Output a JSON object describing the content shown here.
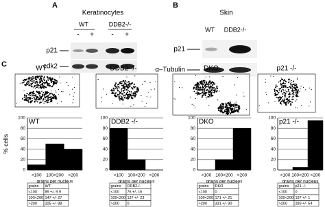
{
  "panels": {
    "a": {
      "label": "A",
      "title": "Keratinocytes",
      "groups": [
        "WT",
        "DDB2-/-"
      ],
      "treatments": [
        "-",
        "+",
        "-",
        "+"
      ],
      "rows": [
        "p21",
        "cdk2"
      ]
    },
    "b": {
      "label": "B",
      "title": "Skin",
      "groups": [
        "WT",
        "DDB2-/-"
      ],
      "rows": [
        "p21",
        "α–Tubulin"
      ]
    },
    "c": {
      "label": "C",
      "images": [
        "WT",
        "DDB2 -/-",
        "DKO",
        "p21 -/-"
      ]
    }
  },
  "chart_data": [
    {
      "type": "bar",
      "title": "WT",
      "ylabel": "% cells",
      "xlabel": "grains per nucleus",
      "categories": [
        "<100",
        "100<200",
        ">200"
      ],
      "values": [
        10,
        50,
        40
      ],
      "color": "#000000",
      "ylim": [
        0,
        100
      ],
      "yticks": [
        0,
        20,
        40,
        60,
        80,
        100
      ],
      "grid": true
    },
    {
      "type": "bar",
      "title": "DDB2 -/-",
      "xlabel": "grains per nucleus",
      "categories": [
        "<100",
        "100<200",
        ">200"
      ],
      "values": [
        80,
        20,
        0
      ],
      "color": "#000000",
      "ylim": [
        0,
        100
      ],
      "yticks": [
        0,
        20,
        40,
        60,
        80,
        100
      ],
      "grid": true
    },
    {
      "type": "bar",
      "title": "DKO",
      "xlabel": "grains per nucleus",
      "categories": [
        "<100",
        "100<200",
        ">200"
      ],
      "values": [
        0,
        20,
        80
      ],
      "color": "#000000",
      "ylim": [
        0,
        100
      ],
      "yticks": [
        0,
        20,
        40,
        60,
        80,
        100
      ],
      "grid": true
    },
    {
      "type": "bar",
      "title": "p21 -/-",
      "xlabel": "grains per nucleus",
      "categories": [
        "<100",
        "100<200",
        ">200"
      ],
      "values": [
        0,
        5,
        95
      ],
      "color": "#000000",
      "ylim": [
        0,
        100
      ],
      "yticks": [
        0,
        20,
        40,
        60,
        80,
        100
      ],
      "grid": true
    }
  ],
  "tables": [
    {
      "rows": [
        [
          "grains",
          "WT"
        ],
        [
          "<100",
          "89 +/- 9.9"
        ],
        [
          "100<200",
          "147 +/- 27"
        ],
        [
          ">200",
          "325 +/- 88"
        ]
      ]
    },
    {
      "rows": [
        [
          "grains",
          "DDB2-/-"
        ],
        [
          "<100",
          "76 +/- 16"
        ],
        [
          "100<200",
          "137 +/- 23"
        ],
        [
          ">200",
          "0"
        ]
      ]
    },
    {
      "rows": [
        [
          "grains",
          "DKO"
        ],
        [
          "<100",
          "0"
        ],
        [
          "100<200",
          "171 +/- 21"
        ],
        [
          ">200",
          "331 +/- 90"
        ]
      ]
    },
    {
      "rows": [
        [
          "grains",
          "p21 -/-"
        ],
        [
          "<100",
          "0"
        ],
        [
          "100<200",
          "197 +/- 1"
        ],
        [
          ">200",
          "289 +/- 54"
        ]
      ]
    }
  ]
}
